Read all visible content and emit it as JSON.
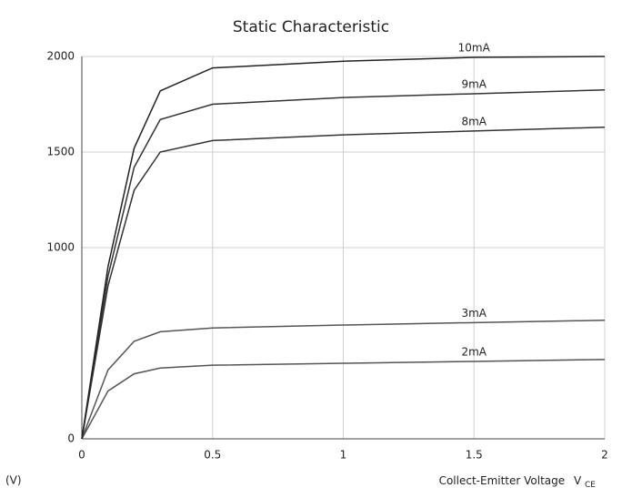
{
  "chart_data": {
    "type": "line",
    "title": "Static Characteristic",
    "x_label": "Collect-Emitter Voltage",
    "x_label_symbol": "V",
    "x_label_subscript": "CE",
    "x_unit_label": "(V)",
    "x": [
      0,
      0.1,
      0.2,
      0.3,
      0.5,
      1,
      1.5,
      2
    ],
    "xlim": [
      0,
      2
    ],
    "xticks": [
      0,
      0.5,
      1,
      1.5,
      2
    ],
    "ylim": [
      0,
      2000
    ],
    "yticks": [
      0,
      1000,
      1500,
      2000
    ],
    "grid": true,
    "series": [
      {
        "name": "2mA",
        "color": "#555555",
        "values": [
          0,
          250,
          340,
          370,
          385,
          395,
          405,
          415
        ]
      },
      {
        "name": "3mA",
        "color": "#555555",
        "values": [
          0,
          360,
          510,
          560,
          580,
          595,
          608,
          620
        ]
      },
      {
        "name": "8mA",
        "color": "#333333",
        "values": [
          0,
          800,
          1300,
          1500,
          1560,
          1590,
          1610,
          1630
        ]
      },
      {
        "name": "9mA",
        "color": "#333333",
        "values": [
          0,
          850,
          1420,
          1670,
          1750,
          1785,
          1805,
          1825
        ]
      },
      {
        "name": "10mA",
        "color": "#222222",
        "values": [
          0,
          900,
          1520,
          1820,
          1940,
          1975,
          1995,
          2000
        ]
      }
    ]
  }
}
